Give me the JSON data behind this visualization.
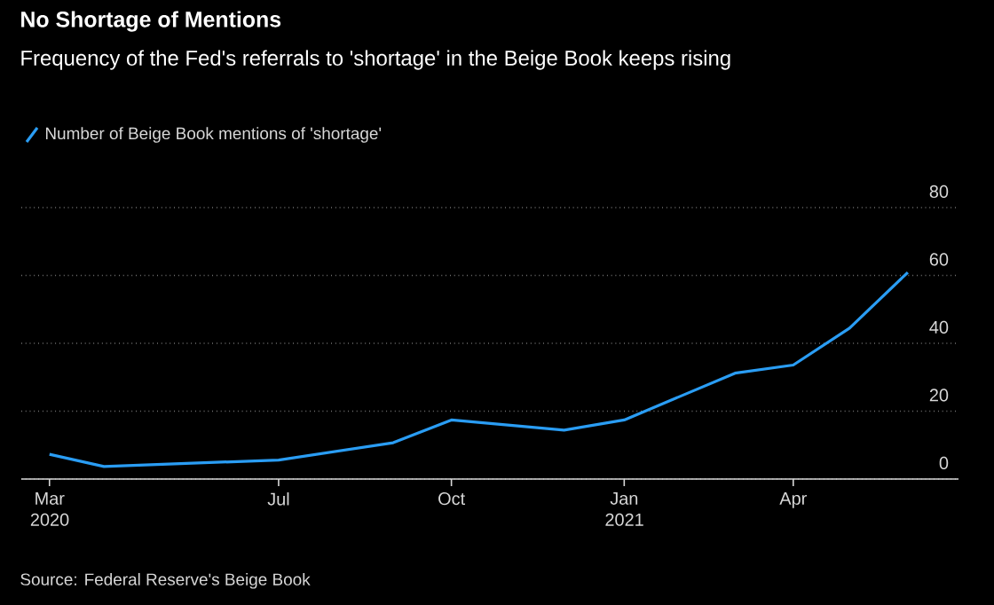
{
  "chart_data": {
    "type": "line",
    "title": "No Shortage of Mentions",
    "subtitle": "Frequency of the Fed's referrals to 'shortage' in the Beige Book keeps rising",
    "x": [
      "2020-03-01",
      "2020-03-30",
      "2020-07-01",
      "2020-08-31",
      "2020-10-01",
      "2020-11-30",
      "2021-01-01",
      "2021-03-01",
      "2021-04-01",
      "2021-05-01",
      "2021-06-01"
    ],
    "series": [
      {
        "name": "Number of Beige Book mentions of 'shortage'",
        "color": "#2a9df4",
        "values": [
          7.3,
          3.7,
          5.6,
          10.7,
          17.4,
          14.4,
          17.4,
          31.2,
          33.6,
          44.5,
          60.9
        ]
      }
    ],
    "xlim": [
      "2020-02-15",
      "2021-06-28"
    ],
    "xticks": [
      {
        "value": "2020-03-01",
        "label": "Mar 2020"
      },
      {
        "value": "2020-07-01",
        "label": "Jul"
      },
      {
        "value": "2020-10-01",
        "label": "Oct"
      },
      {
        "value": "2021-01-01",
        "label": "Jan 2021"
      },
      {
        "value": "2021-04-01",
        "label": "Apr"
      }
    ],
    "ylim": [
      0,
      80
    ],
    "yticks": [
      0,
      20,
      40,
      60,
      80
    ],
    "grid": "y",
    "legend": "top left",
    "annotations": [
      "Source: Federal Reserve's Beige Book"
    ]
  }
}
